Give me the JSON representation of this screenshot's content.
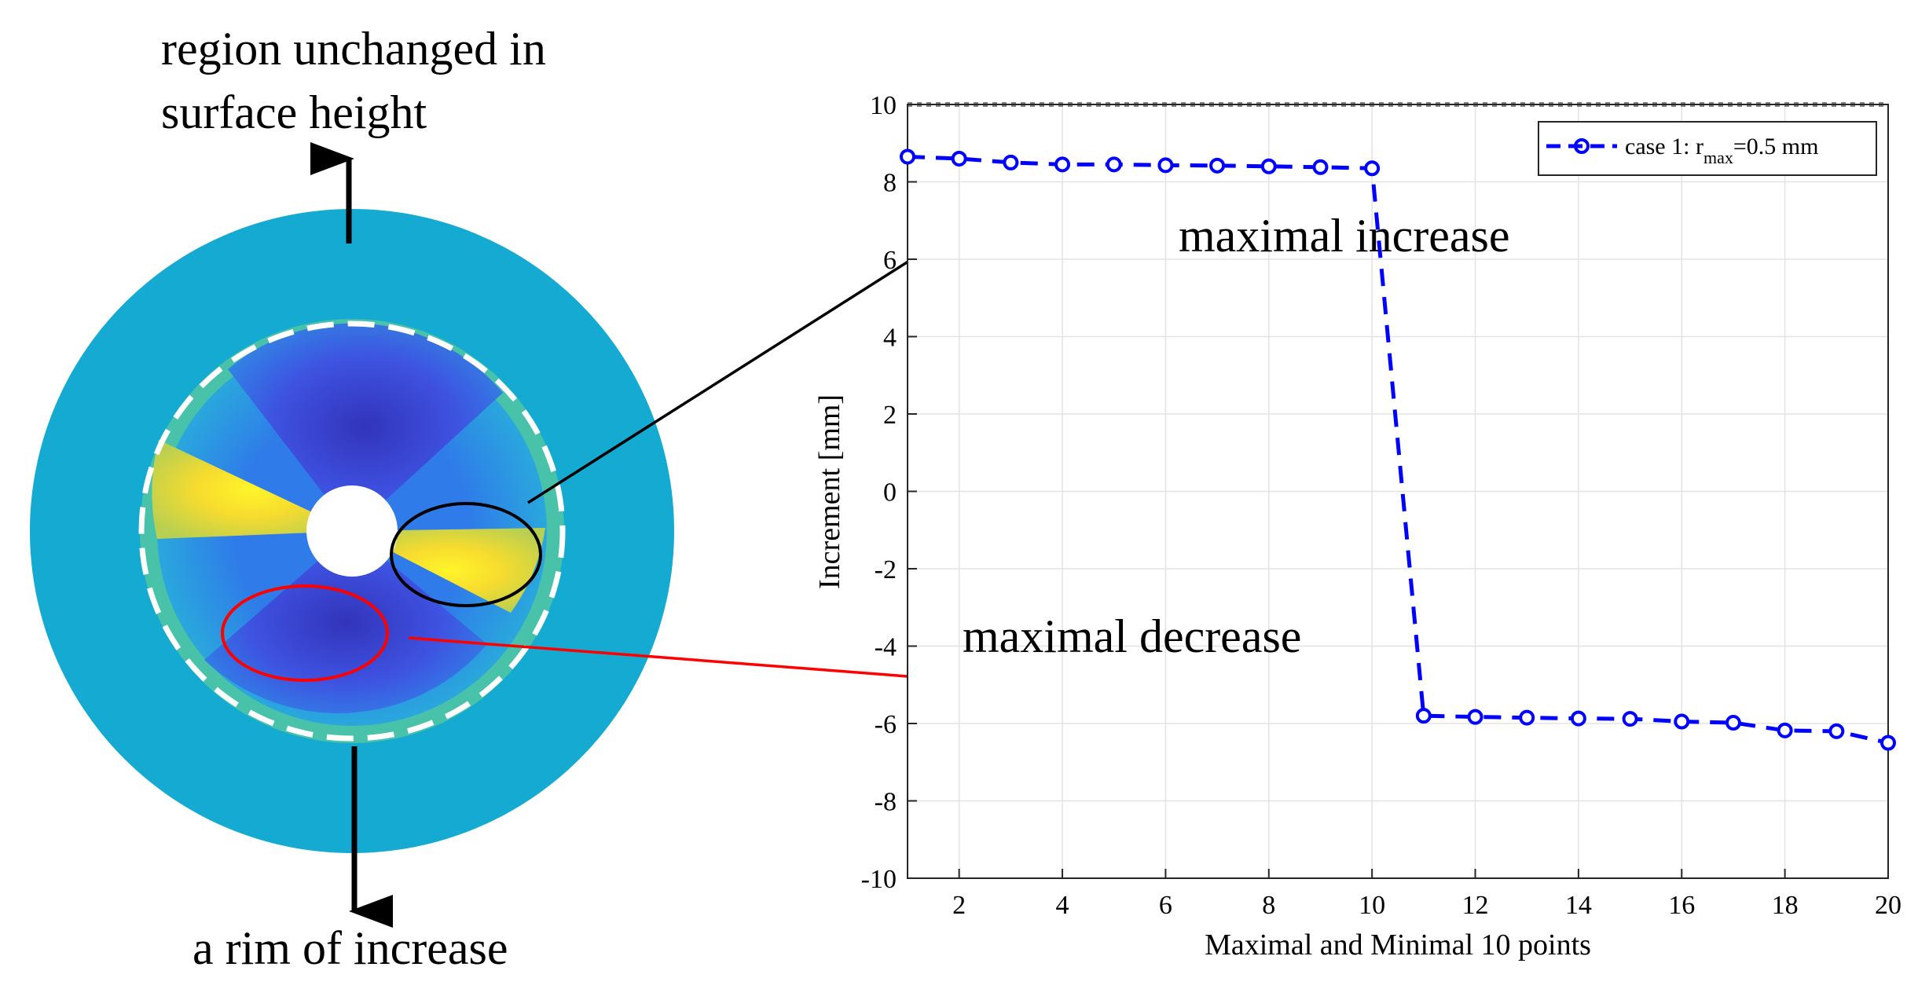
{
  "annotations": {
    "region_top_line1": "region unchanged in",
    "region_top_line2": "surface height",
    "rim_label": "a rim of increase",
    "max_increase": "maximal increase",
    "max_decrease": "maximal decrease"
  },
  "colors": {
    "outer_ring": "#14aad2",
    "rim": "#48c2a8",
    "increase": "#f5e32b",
    "decrease": "#3b3fd6",
    "series": "#0000ff",
    "increase_arrow": "#000000",
    "decrease_arrow": "#ff0000"
  },
  "chart_data": {
    "type": "line",
    "xlabel": "Maximal and Minimal 10 points",
    "ylabel": "Increment [mm]",
    "xlim": [
      1,
      20
    ],
    "ylim": [
      -10,
      10
    ],
    "xticks": [
      2,
      4,
      6,
      8,
      10,
      12,
      14,
      16,
      18,
      20
    ],
    "yticks": [
      10,
      8,
      6,
      4,
      2,
      0,
      -2,
      -4,
      -6,
      -8,
      -10
    ],
    "grid": true,
    "legend_position": "top-right",
    "reference_line_y": 10,
    "series": [
      {
        "name": "case 1: r",
        "name_subscript": "max",
        "name_suffix": "=0.5 mm",
        "style": "dashed-circle",
        "x": [
          1,
          2,
          3,
          4,
          5,
          6,
          7,
          8,
          9,
          10,
          11,
          12,
          13,
          14,
          15,
          16,
          17,
          18,
          19,
          20
        ],
        "values": [
          8.65,
          8.6,
          8.5,
          8.45,
          8.45,
          8.43,
          8.42,
          8.4,
          8.38,
          8.35,
          -5.8,
          -5.83,
          -5.85,
          -5.87,
          -5.88,
          -5.95,
          -5.98,
          -6.18,
          -6.2,
          -6.5
        ]
      }
    ]
  }
}
